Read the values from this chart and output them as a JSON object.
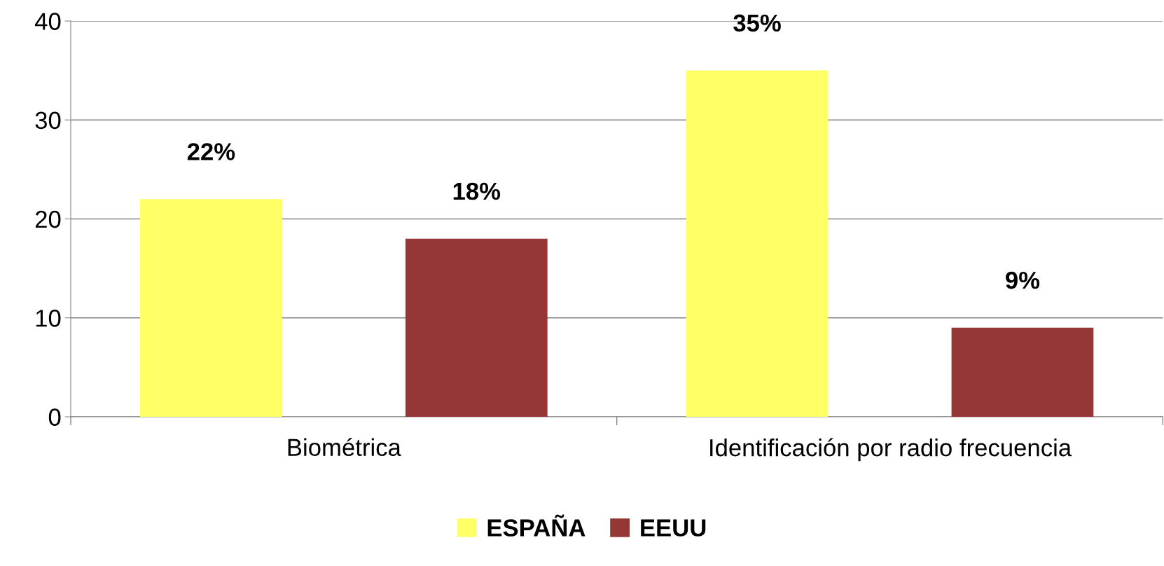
{
  "chart_data": {
    "type": "bar",
    "categories": [
      "Biométrica",
      "Identificación por radio frecuencia"
    ],
    "series": [
      {
        "name": "ESPAÑA",
        "color": "#ffff66",
        "values": [
          22,
          35
        ],
        "value_labels": [
          "22%",
          "35%"
        ]
      },
      {
        "name": "EEUU",
        "color": "#953735",
        "values": [
          18,
          9
        ],
        "value_labels": [
          "18%",
          "9%"
        ]
      }
    ],
    "ylim": [
      0,
      40
    ],
    "yticks": [
      0,
      10,
      20,
      30,
      40
    ],
    "grid": "y",
    "legend": "bottom"
  }
}
